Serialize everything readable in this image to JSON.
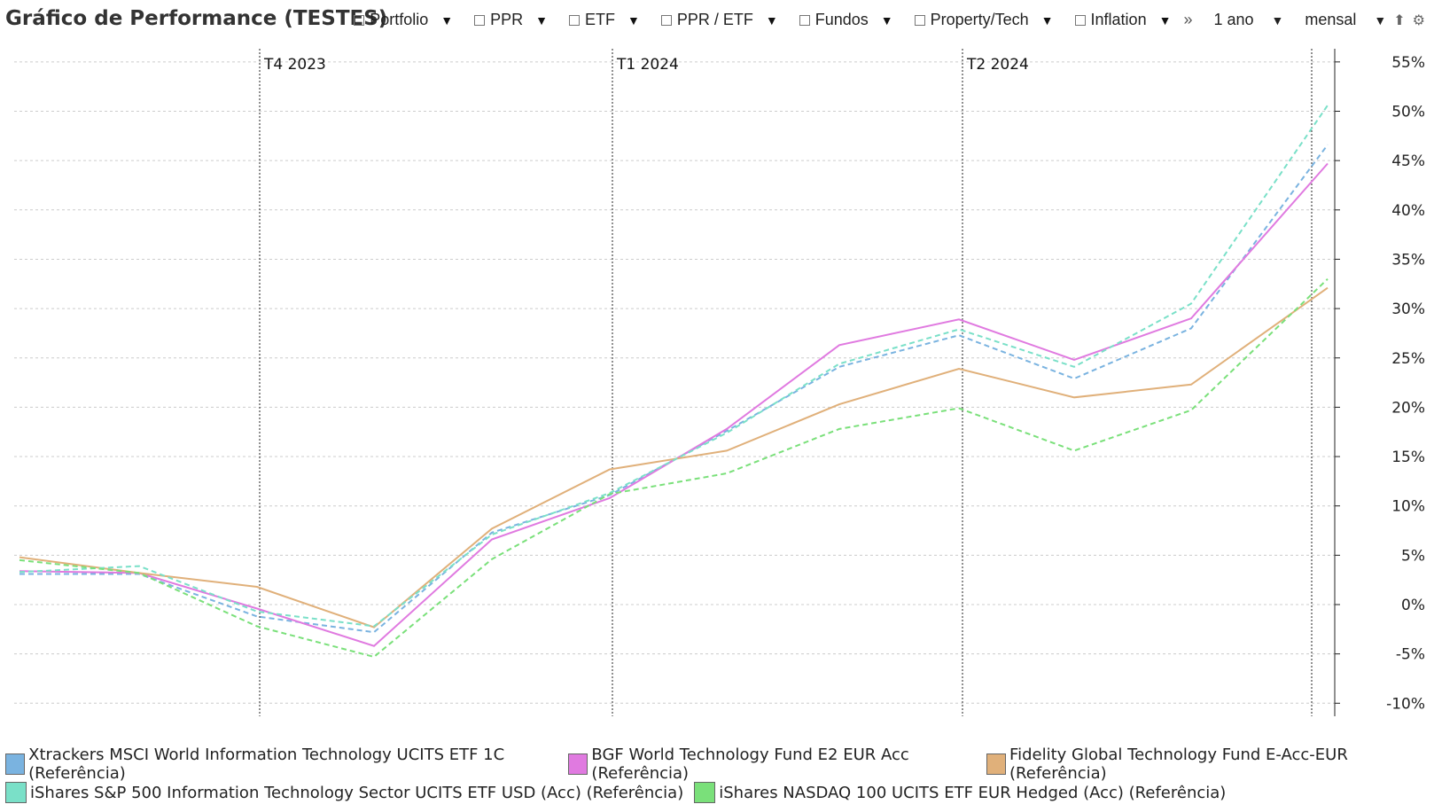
{
  "header": {
    "title": "Gráfico de Performance (TESTES)",
    "filters": [
      {
        "label": "Portfolio"
      },
      {
        "label": "PPR"
      },
      {
        "label": "ETF"
      },
      {
        "label": "PPR / ETF"
      },
      {
        "label": "Fundos"
      },
      {
        "label": "Property/Tech"
      },
      {
        "label": "Inflation"
      }
    ],
    "more_icon": "double-chevron-right-icon",
    "period": "1 ano",
    "frequency": "mensal",
    "export_icon": "upload-icon",
    "settings_icon": "gear-icon"
  },
  "chart_data": {
    "type": "line",
    "x": [
      "2023-08",
      "2023-09",
      "2023-10",
      "2023-11",
      "2023-12",
      "2024-01",
      "2024-02",
      "2024-03",
      "2024-04",
      "2024-05",
      "2024-06",
      "2024-07"
    ],
    "quarter_markers": [
      {
        "label": "T4 2023",
        "x": "2023-10"
      },
      {
        "label": "T1 2024",
        "x": "2024-01"
      },
      {
        "label": "T2 2024",
        "x": "2024-04"
      },
      {
        "label": "",
        "x": "2024-07"
      }
    ],
    "ylim": [
      -11,
      56
    ],
    "yticks": [
      -10,
      -5,
      0,
      5,
      10,
      15,
      20,
      25,
      30,
      35,
      40,
      45,
      50,
      55
    ],
    "ytick_labels": [
      "-10%",
      "-5%",
      "0%",
      "5%",
      "10%",
      "15%",
      "20%",
      "25%",
      "30%",
      "35%",
      "40%",
      "45%",
      "50%",
      "55%"
    ],
    "y_axis_side": "right",
    "grid": true,
    "legend_position": "bottom",
    "series": [
      {
        "name": "Xtrackers MSCI World Information Technology UCITS ETF 1C (Referência)",
        "color": "#7ab3e0",
        "dash": true,
        "values": [
          3.1,
          3.1,
          -1.2,
          -2.8,
          7.3,
          11.1,
          17.6,
          24.1,
          27.3,
          22.9,
          28.0,
          46.6
        ]
      },
      {
        "name": "BGF World Technology Fund E2 EUR Acc (Referência)",
        "color": "#e07ae0",
        "dash": false,
        "values": [
          3.4,
          3.2,
          -0.4,
          -4.2,
          6.6,
          10.8,
          17.8,
          26.3,
          28.9,
          24.8,
          29.0,
          44.7
        ]
      },
      {
        "name": "Fidelity Global Technology Fund E-Acc-EUR (Referência)",
        "color": "#e0b07a",
        "dash": false,
        "values": [
          4.8,
          3.2,
          1.8,
          -2.3,
          7.7,
          13.7,
          15.6,
          20.3,
          23.9,
          21.0,
          22.3,
          32.1
        ]
      },
      {
        "name": "iShares S&P 500 Information Technology Sector UCITS ETF USD (Acc) (Referência)",
        "color": "#7ae0c8",
        "dash": true,
        "values": [
          3.3,
          3.9,
          -0.7,
          -2.2,
          7.1,
          11.3,
          17.4,
          24.4,
          27.9,
          24.1,
          30.5,
          50.6
        ]
      },
      {
        "name": "iShares NASDAQ 100 UCITS ETF EUR Hedged (Acc) (Referência)",
        "color": "#7ae07a",
        "dash": true,
        "values": [
          4.5,
          3.2,
          -2.2,
          -5.3,
          4.6,
          11.2,
          13.3,
          17.8,
          19.9,
          15.6,
          19.7,
          33.0
        ]
      }
    ]
  },
  "legend": {
    "rows": [
      [
        0,
        1,
        2
      ],
      [
        3,
        4
      ]
    ]
  }
}
